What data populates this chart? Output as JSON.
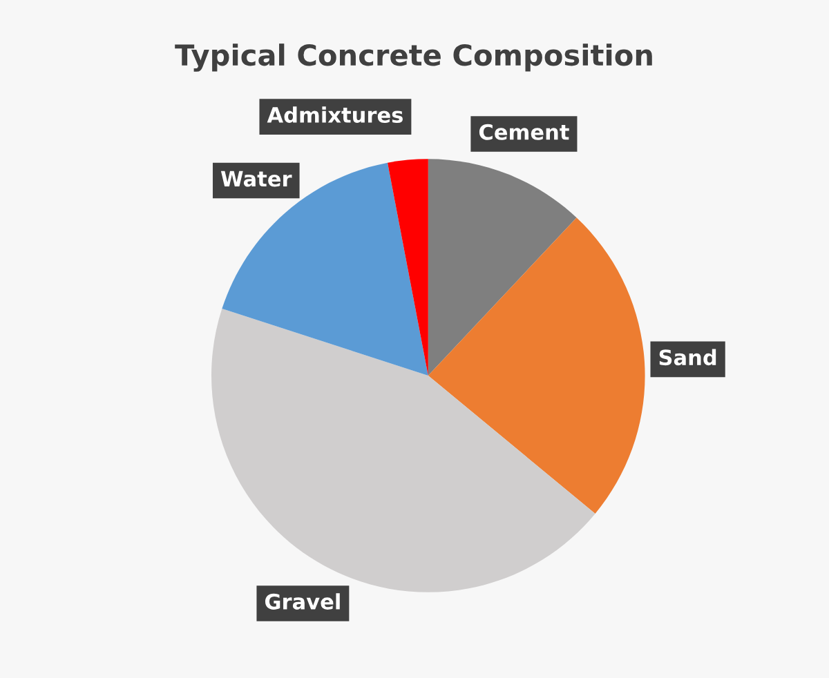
{
  "chart_data": {
    "type": "pie",
    "title": "Typical Concrete Composition",
    "categories": [
      "Cement",
      "Sand",
      "Gravel",
      "Water",
      "Admixtures"
    ],
    "values": [
      12,
      24,
      44,
      17,
      3
    ],
    "colors": [
      "#7f7f7f",
      "#ed7d31",
      "#d0cece",
      "#5b9bd5",
      "#ff0000"
    ],
    "legend": false
  }
}
